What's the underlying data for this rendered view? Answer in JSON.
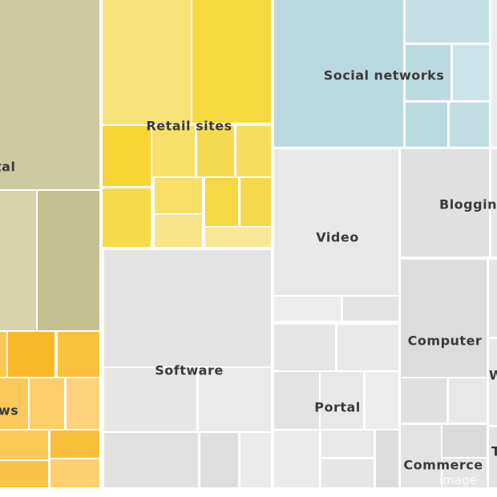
{
  "chart_data": {
    "type": "treemap",
    "title": "",
    "groups": [
      {
        "label": "tal",
        "color": "#cdc9a0"
      },
      {
        "label": "Retail sites",
        "color": "#f6d93e"
      },
      {
        "label": "Social networks",
        "color": "#b9d9df"
      },
      {
        "label": "Software",
        "color": "#e3e3e3"
      },
      {
        "label": "ws",
        "color": "#f9bf3b"
      },
      {
        "label": "Video",
        "color": "#e8e8e8"
      },
      {
        "label": "Portal",
        "color": "#e6e6e6"
      },
      {
        "label": "Bloggin",
        "color": "#e0e0e0"
      },
      {
        "label": "Computer",
        "color": "#dcdcdc"
      },
      {
        "label": "Commerce",
        "color": "#e3e3e3"
      },
      {
        "label": "W",
        "color": "#e4e4e4"
      },
      {
        "label": "T",
        "color": "#e4e4e4"
      }
    ]
  },
  "watermark": "image"
}
